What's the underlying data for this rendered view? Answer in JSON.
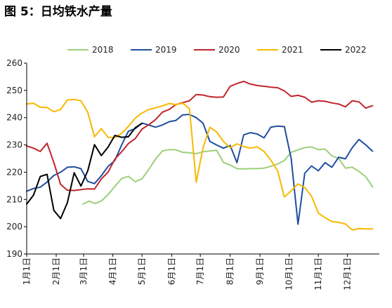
{
  "figure_title": "图 5：日均铁水产量",
  "colors": {
    "2018": "#9ccf7a",
    "2019": "#1f4ea0",
    "2020": "#c0262c",
    "2021": "#f8b800",
    "2022": "#000000"
  },
  "chart_data": {
    "type": "line",
    "title": "图 5：日均铁水产量",
    "xlabel": "",
    "ylabel": "",
    "ylim": [
      190,
      260
    ],
    "yticks": [
      190,
      200,
      210,
      220,
      230,
      240,
      250,
      260
    ],
    "xlim": [
      0,
      52
    ],
    "x_tick_positions": [
      0,
      4.35,
      8.4,
      12.7,
      17.0,
      21.4,
      25.6,
      30.0,
      34.4,
      38.7,
      43.0,
      47.3
    ],
    "x_tick_labels": [
      "1月1日",
      "2月1日",
      "3月1日",
      "4月1日",
      "5月1日",
      "6月1日",
      "7月1日",
      "8月1日",
      "9月1日",
      "10月1日",
      "11月1日",
      "12月1日"
    ],
    "legend_position": "top",
    "grid": false,
    "series": [
      {
        "name": "2018",
        "x": [
          8.3,
          9.2,
          10.1,
          11.0,
          12.0,
          13.0,
          14.0,
          15.0,
          16.0,
          17.0,
          18.0,
          19.0,
          20.0,
          21.0,
          22.0,
          23.0,
          24.0,
          25.0,
          26.0,
          27.0,
          28.0,
          29.0,
          30.0,
          31.0,
          32.0,
          33.0,
          34.0,
          35.0,
          36.0,
          37.0,
          38.0,
          39.0,
          40.0,
          41.0,
          42.0,
          43.0,
          44.0,
          45.0,
          46.0,
          47.0,
          48.0,
          49.0,
          50.0,
          51.0
        ],
        "y": [
          208.3,
          209.4,
          208.5,
          209.4,
          211.8,
          214.8,
          217.7,
          218.5,
          216.5,
          217.6,
          221.0,
          224.8,
          227.8,
          228.3,
          228.2,
          227.3,
          227.1,
          226.8,
          227.5,
          227.8,
          228.0,
          223.6,
          222.6,
          221.3,
          221.2,
          221.3,
          221.3,
          221.5,
          222.2,
          223.0,
          224.3,
          227.3,
          228.2,
          229.0,
          229.3,
          228.3,
          228.5,
          226.0,
          225.0,
          221.5,
          221.8,
          220.3,
          218.3,
          214.6
        ]
      },
      {
        "name": "2019",
        "x": [
          0.0,
          1.0,
          2.0,
          3.0,
          4.0,
          5.0,
          6.0,
          7.0,
          8.0,
          9.0,
          10.0,
          11.0,
          12.0,
          13.0,
          14.0,
          15.0,
          16.0,
          17.0,
          18.0,
          19.0,
          20.0,
          21.0,
          22.0,
          23.0,
          24.0,
          25.0,
          26.0,
          27.0,
          28.0,
          29.0,
          30.0,
          31.0,
          32.0,
          33.0,
          34.0,
          35.0,
          36.0,
          37.0,
          38.0,
          39.0,
          40.0,
          41.0,
          42.0,
          43.0,
          44.0,
          45.0,
          46.0,
          47.0,
          48.0,
          49.0,
          50.0,
          51.0
        ],
        "y": [
          213.0,
          214.0,
          214.5,
          216.4,
          218.8,
          220.0,
          221.8,
          222.0,
          221.3,
          216.6,
          215.8,
          218.7,
          222.1,
          224.3,
          230.0,
          235.0,
          236.0,
          238.0,
          237.3,
          236.5,
          237.3,
          238.5,
          239.0,
          241.0,
          241.2,
          240.0,
          238.0,
          231.3,
          230.0,
          228.8,
          229.8,
          223.5,
          233.7,
          234.5,
          234.0,
          232.6,
          236.5,
          236.9,
          236.7,
          225.0,
          200.9,
          219.6,
          222.3,
          220.5,
          223.5,
          221.8,
          225.5,
          224.9,
          229.0,
          232.0,
          230.0,
          227.7
        ]
      },
      {
        "name": "2020",
        "x": [
          0.0,
          1.0,
          2.0,
          3.0,
          4.0,
          5.0,
          6.0,
          7.0,
          8.0,
          9.0,
          10.0,
          11.0,
          12.0,
          13.0,
          14.0,
          15.0,
          16.0,
          17.0,
          18.0,
          19.0,
          20.0,
          21.0,
          22.0,
          23.0,
          24.0,
          25.0,
          26.0,
          27.0,
          28.0,
          29.0,
          30.0,
          31.0,
          32.0,
          33.0,
          34.0,
          35.0,
          36.0,
          37.0,
          38.0,
          39.0,
          40.0,
          41.0,
          42.0,
          43.0,
          44.0,
          45.0,
          46.0,
          47.0,
          48.0,
          49.0,
          50.0,
          51.0
        ],
        "y": [
          229.6,
          228.8,
          227.6,
          230.6,
          223.6,
          215.5,
          213.4,
          213.3,
          213.6,
          213.9,
          213.8,
          217.5,
          220.0,
          224.8,
          227.5,
          230.5,
          232.3,
          235.8,
          237.4,
          239.3,
          242.0,
          243.0,
          244.8,
          245.5,
          246.2,
          248.5,
          248.3,
          247.7,
          247.5,
          247.6,
          251.5,
          252.5,
          253.3,
          252.3,
          251.8,
          251.5,
          251.2,
          251.0,
          249.8,
          247.8,
          248.2,
          247.5,
          245.7,
          246.2,
          246.0,
          245.4,
          245.0,
          244.0,
          246.2,
          245.8,
          243.5,
          244.4
        ]
      },
      {
        "name": "2021",
        "x": [
          0.0,
          1.0,
          2.0,
          3.0,
          4.0,
          5.0,
          6.0,
          7.0,
          8.0,
          9.0,
          10.0,
          11.0,
          12.0,
          13.0,
          14.0,
          15.0,
          16.0,
          17.0,
          18.0,
          19.0,
          20.0,
          21.0,
          22.0,
          23.0,
          24.0,
          25.0,
          26.0,
          27.0,
          28.0,
          29.0,
          30.0,
          31.0,
          32.0,
          33.0,
          34.0,
          35.0,
          36.0,
          37.0,
          38.0,
          39.0,
          40.0,
          41.0,
          42.0,
          43.0,
          44.0,
          45.0,
          46.0,
          47.0,
          48.0,
          49.0,
          50.0,
          51.0
        ],
        "y": [
          245.0,
          245.3,
          243.8,
          243.7,
          242.2,
          243.0,
          246.5,
          246.7,
          246.2,
          242.0,
          233.0,
          236.0,
          232.8,
          232.7,
          234.3,
          236.8,
          239.8,
          241.7,
          243.0,
          243.6,
          244.3,
          245.2,
          244.8,
          245.3,
          243.3,
          216.3,
          229.0,
          236.5,
          234.8,
          231.3,
          229.0,
          230.4,
          229.4,
          228.8,
          229.3,
          227.6,
          224.4,
          220.5,
          210.9,
          213.2,
          215.7,
          214.4,
          211.2,
          205.0,
          203.3,
          201.9,
          201.6,
          201.0,
          198.8,
          199.3,
          199.2,
          199.2
        ]
      },
      {
        "name": "2022",
        "x": [
          0.0,
          1.0,
          2.0,
          3.0,
          4.0,
          5.0,
          6.0,
          7.0,
          8.0,
          9.0,
          10.0,
          11.0,
          12.0,
          13.0,
          14.0,
          15.0,
          16.0,
          17.0
        ],
        "y": [
          208.3,
          211.6,
          218.4,
          219.2,
          206.0,
          203.0,
          208.8,
          219.8,
          214.9,
          220.5,
          230.1,
          226.1,
          229.2,
          233.5,
          232.8,
          233.0,
          236.3,
          237.9
        ]
      }
    ]
  }
}
